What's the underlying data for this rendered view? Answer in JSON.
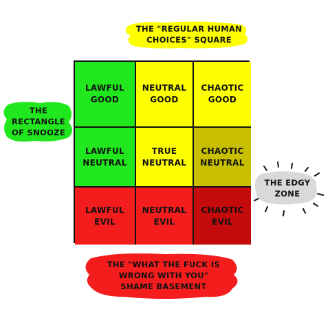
{
  "colors": {
    "green": "#21e81e",
    "yellow": "#fefe02",
    "olive": "#c7bf00",
    "red": "#f41d1d",
    "darkred": "#c40a0a",
    "gray": "#d9d9d9"
  },
  "callouts": {
    "top": "THE \"REGULAR HUMAN\nCHOICES\" SQUARE",
    "left": "THE\nRECTANGLE\nOF SNOOZE",
    "right": "THE EDGY\nZONE",
    "bottom": "THE \"WHAT THE FUCK IS\nWRONG WITH YOU\"\nSHAME BASEMENT"
  },
  "grid": {
    "cells": [
      {
        "label": "LAWFUL\nGOOD",
        "color": "green"
      },
      {
        "label": "NEUTRAL\nGOOD",
        "color": "yellow"
      },
      {
        "label": "CHAOTIC\nGOOD",
        "color": "yellow"
      },
      {
        "label": "LAWFUL\nNEUTRAL",
        "color": "green"
      },
      {
        "label": "TRUE\nNEUTRAL",
        "color": "yellow"
      },
      {
        "label": "CHAOTIC\nNEUTRAL",
        "color": "olive"
      },
      {
        "label": "LAWFUL\nEVIL",
        "color": "red"
      },
      {
        "label": "NEUTRAL\nEVIL",
        "color": "red"
      },
      {
        "label": "CHAOTIC\nEVIL",
        "color": "darkred"
      }
    ]
  }
}
